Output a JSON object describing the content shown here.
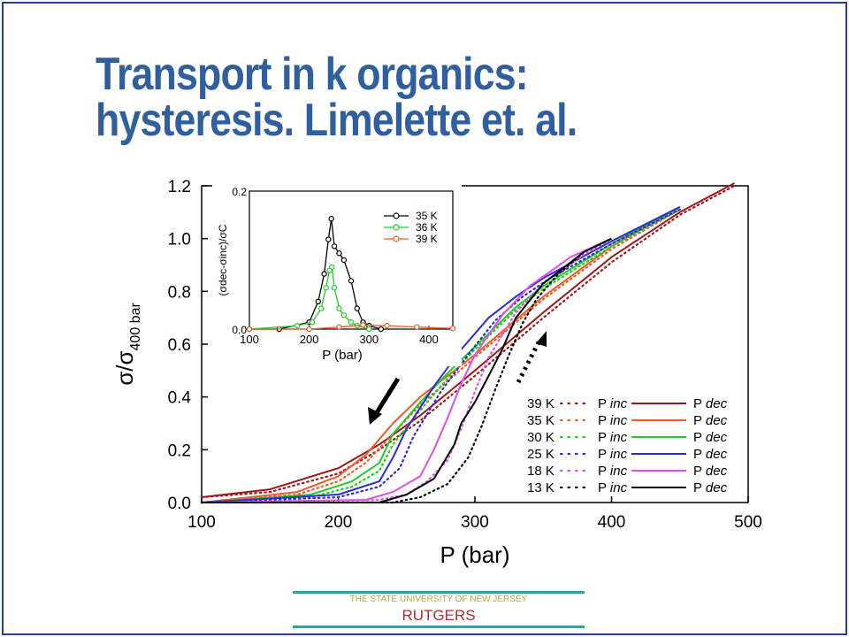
{
  "slide": {
    "title_line1": "Transport in k organics:",
    "title_line2": "hysteresis. Limelette et. al.",
    "footer_tagline": "THE STATE UNIVERSITY OF NEW JERSEY",
    "footer_name": "RUTGERS",
    "title_color": "#2f5f9e",
    "border_color": "#2a3f8f"
  },
  "chart_data": [
    {
      "type": "line",
      "xlabel": "P (bar)",
      "ylabel": "σ/σ400 bar",
      "xlim": [
        100,
        500
      ],
      "ylim": [
        0,
        1.2
      ],
      "xticks": [
        100,
        200,
        300,
        400,
        500
      ],
      "yticks": [
        0.0,
        0.2,
        0.4,
        0.6,
        0.8,
        1.0,
        1.2
      ],
      "legend_position": "bottom-right",
      "legend": [
        {
          "temp": "39 K",
          "inc": "P inc",
          "dec": "P dec",
          "color": "#a01818"
        },
        {
          "temp": "35 K",
          "inc": "P inc",
          "dec": "P dec",
          "color": "#f05a28"
        },
        {
          "temp": "30 K",
          "inc": "P inc",
          "dec": "P dec",
          "color": "#22cc22"
        },
        {
          "temp": "25 K",
          "inc": "P inc",
          "dec": "P dec",
          "color": "#2a2ae0"
        },
        {
          "temp": "18 K",
          "inc": "P inc",
          "dec": "P dec",
          "color": "#e050e8"
        },
        {
          "temp": "13 K",
          "inc": "P inc",
          "dec": "P dec",
          "color": "#000000"
        }
      ],
      "series": [
        {
          "temp": "39 K",
          "kind": "dec",
          "x": [
            100,
            150,
            200,
            230,
            260,
            300,
            350,
            400,
            450,
            490
          ],
          "y": [
            0.02,
            0.05,
            0.13,
            0.22,
            0.33,
            0.5,
            0.72,
            0.93,
            1.1,
            1.21
          ]
        },
        {
          "temp": "39 K",
          "kind": "inc",
          "x": [
            100,
            150,
            200,
            230,
            260,
            300,
            350,
            400,
            450,
            490
          ],
          "y": [
            0.02,
            0.04,
            0.11,
            0.2,
            0.31,
            0.48,
            0.7,
            0.91,
            1.09,
            1.2
          ]
        },
        {
          "temp": "35 K",
          "kind": "dec",
          "x": [
            100,
            170,
            200,
            220,
            240,
            260,
            280,
            300,
            350,
            400,
            450
          ],
          "y": [
            0.0,
            0.04,
            0.1,
            0.18,
            0.3,
            0.4,
            0.48,
            0.56,
            0.78,
            0.97,
            1.12
          ]
        },
        {
          "temp": "35 K",
          "kind": "inc",
          "x": [
            100,
            170,
            200,
            220,
            240,
            260,
            280,
            300,
            350,
            400,
            450
          ],
          "y": [
            0.0,
            0.03,
            0.08,
            0.15,
            0.26,
            0.37,
            0.46,
            0.55,
            0.77,
            0.96,
            1.11
          ]
        },
        {
          "temp": "30 K",
          "kind": "dec",
          "x": [
            100,
            180,
            210,
            230,
            240,
            260,
            280,
            300,
            330,
            350,
            400,
            450
          ],
          "y": [
            0.0,
            0.03,
            0.08,
            0.15,
            0.26,
            0.38,
            0.49,
            0.59,
            0.74,
            0.82,
            0.98,
            1.12
          ]
        },
        {
          "temp": "30 K",
          "kind": "inc",
          "x": [
            100,
            180,
            210,
            230,
            240,
            260,
            280,
            300,
            330,
            350,
            400,
            450
          ],
          "y": [
            0.0,
            0.02,
            0.06,
            0.12,
            0.22,
            0.35,
            0.47,
            0.58,
            0.73,
            0.81,
            0.97,
            1.11
          ]
        },
        {
          "temp": "25 K",
          "kind": "dec",
          "x": [
            100,
            200,
            230,
            240,
            250,
            270,
            290,
            310,
            330,
            350,
            400,
            450
          ],
          "y": [
            0.0,
            0.03,
            0.08,
            0.17,
            0.28,
            0.44,
            0.58,
            0.7,
            0.78,
            0.85,
            0.99,
            1.12
          ]
        },
        {
          "temp": "25 K",
          "kind": "inc",
          "x": [
            100,
            200,
            230,
            245,
            255,
            275,
            295,
            315,
            335,
            355,
            400,
            450
          ],
          "y": [
            0.0,
            0.02,
            0.06,
            0.13,
            0.25,
            0.42,
            0.56,
            0.69,
            0.78,
            0.85,
            0.98,
            1.11
          ]
        },
        {
          "temp": "18 K",
          "kind": "dec",
          "x": [
            100,
            220,
            240,
            260,
            270,
            280,
            290,
            300,
            320,
            340,
            370,
            400
          ],
          "y": [
            0.0,
            0.01,
            0.04,
            0.1,
            0.2,
            0.32,
            0.45,
            0.56,
            0.71,
            0.82,
            0.93,
            1.0
          ]
        },
        {
          "temp": "18 K",
          "kind": "inc",
          "x": [
            100,
            230,
            250,
            265,
            280,
            290,
            300,
            310,
            330,
            350,
            380,
            400
          ],
          "y": [
            0.0,
            0.01,
            0.03,
            0.08,
            0.16,
            0.28,
            0.42,
            0.55,
            0.72,
            0.83,
            0.94,
            1.0
          ]
        },
        {
          "temp": "13 K",
          "kind": "dec",
          "x": [
            100,
            230,
            250,
            270,
            285,
            290,
            300,
            310,
            320,
            330,
            350,
            380,
            400
          ],
          "y": [
            0.0,
            0.0,
            0.03,
            0.09,
            0.22,
            0.3,
            0.38,
            0.48,
            0.58,
            0.7,
            0.83,
            0.95,
            1.0
          ]
        },
        {
          "temp": "13 K",
          "kind": "inc",
          "x": [
            100,
            240,
            260,
            280,
            295,
            305,
            315,
            325,
            335,
            345,
            360,
            380,
            400
          ],
          "y": [
            0.0,
            0.0,
            0.02,
            0.07,
            0.17,
            0.29,
            0.43,
            0.56,
            0.68,
            0.77,
            0.86,
            0.95,
            1.0
          ]
        }
      ]
    },
    {
      "type": "line",
      "inset": true,
      "xlabel": "P (bar)",
      "ylabel": "(σdec-σinc)/σC",
      "xlim": [
        100,
        440
      ],
      "ylim": [
        0,
        0.2
      ],
      "xticks": [
        100,
        200,
        300,
        400
      ],
      "yticks": [
        0.0,
        0.2
      ],
      "legend_position": "top-right",
      "legend": [
        {
          "label": "35 K",
          "color": "#000000"
        },
        {
          "label": "36 K",
          "color": "#22cc22"
        },
        {
          "label": "39 K",
          "color": "#f05a28"
        }
      ],
      "series": [
        {
          "name": "35 K",
          "x": [
            100,
            150,
            200,
            215,
            225,
            232,
            237,
            242,
            250,
            258,
            270,
            280,
            290,
            300,
            320
          ],
          "y": [
            0.0,
            0.0,
            0.01,
            0.04,
            0.08,
            0.13,
            0.16,
            0.12,
            0.11,
            0.1,
            0.07,
            0.03,
            0.01,
            0.005,
            0.0
          ]
        },
        {
          "name": "36 K",
          "x": [
            100,
            180,
            205,
            220,
            228,
            234,
            238,
            242,
            250,
            258,
            270,
            280,
            300
          ],
          "y": [
            0.0,
            0.005,
            0.01,
            0.03,
            0.06,
            0.085,
            0.09,
            0.06,
            0.03,
            0.02,
            0.01,
            0.005,
            0.0
          ]
        },
        {
          "name": "39 K",
          "x": [
            100,
            200,
            250,
            290,
            330,
            380,
            440
          ],
          "y": [
            0.0,
            0.0,
            0.003,
            0.006,
            0.005,
            0.003,
            0.001
          ]
        }
      ]
    }
  ]
}
